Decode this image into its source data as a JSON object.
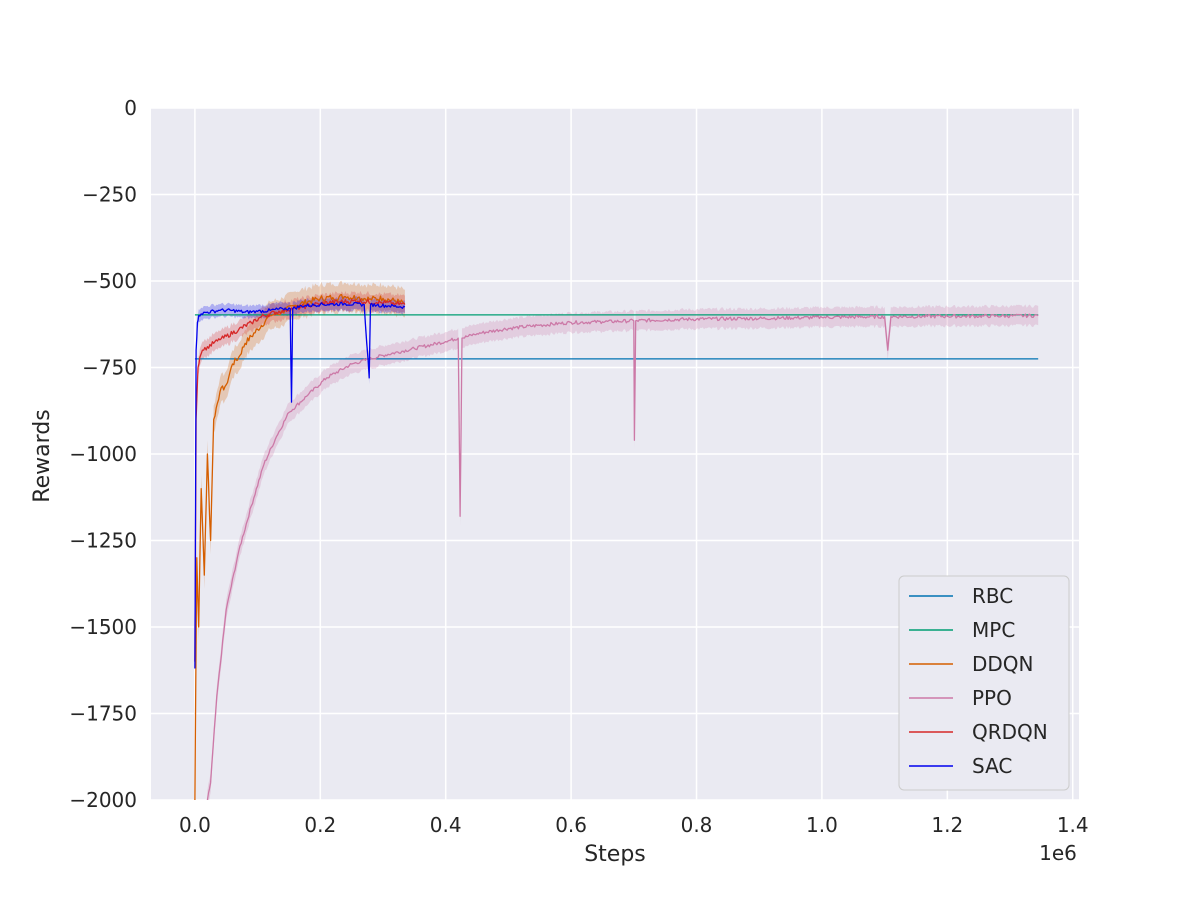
{
  "chart_data": {
    "type": "line",
    "xlabel": "Steps",
    "ylabel": "Rewards",
    "x_offset_label": "1e6",
    "xlim": [
      -0.07,
      1.41
    ],
    "ylim": [
      -2000,
      0
    ],
    "x_ticks": [
      0.0,
      0.2,
      0.4,
      0.6,
      0.8,
      1.0,
      1.2,
      1.4
    ],
    "x_tick_labels": [
      "0.0",
      "0.2",
      "0.4",
      "0.6",
      "0.8",
      "1.0",
      "1.2",
      "1.4"
    ],
    "y_ticks": [
      0,
      -250,
      -500,
      -750,
      -1000,
      -1250,
      -1500,
      -1750,
      -2000
    ],
    "y_tick_labels": [
      "0",
      "−250",
      "−500",
      "−750",
      "−1000",
      "−1250",
      "−1500",
      "−1750",
      "−2000"
    ],
    "grid": true,
    "background": "#eaeaf2",
    "legend_position": "lower-right",
    "series": [
      {
        "name": "RBC",
        "color": "#0072b2",
        "x": [
          0.0,
          1.345
        ],
        "y": [
          -725,
          -725
        ]
      },
      {
        "name": "MPC",
        "color": "#009e73",
        "x": [
          0.0,
          1.345
        ],
        "y": [
          -598,
          -598
        ]
      },
      {
        "name": "DDQN",
        "color": "#d55e00",
        "x": [
          0.0,
          0.003,
          0.006,
          0.01,
          0.015,
          0.02,
          0.025,
          0.03,
          0.04,
          0.05,
          0.06,
          0.07,
          0.08,
          0.09,
          0.1,
          0.12,
          0.14,
          0.16,
          0.18,
          0.2,
          0.22,
          0.24,
          0.26,
          0.28,
          0.3,
          0.32,
          0.335
        ],
        "y": [
          -2000,
          -1300,
          -1500,
          -1100,
          -1350,
          -1000,
          -1250,
          -900,
          -820,
          -800,
          -740,
          -720,
          -680,
          -660,
          -640,
          -600,
          -590,
          -570,
          -560,
          -550,
          -548,
          -545,
          -548,
          -552,
          -550,
          -558,
          -565
        ]
      },
      {
        "name": "PPO",
        "color": "#cc79a7",
        "x": [
          0.02,
          0.025,
          0.035,
          0.05,
          0.07,
          0.09,
          0.11,
          0.13,
          0.15,
          0.18,
          0.21,
          0.25,
          0.3,
          0.35,
          0.4,
          0.42,
          0.423,
          0.426,
          0.45,
          0.5,
          0.55,
          0.6,
          0.65,
          0.7,
          0.701,
          0.703,
          0.75,
          0.8,
          0.9,
          1.0,
          1.1,
          1.105,
          1.11,
          1.2,
          1.3,
          1.345
        ],
        "y": [
          -2000,
          -1950,
          -1700,
          -1450,
          -1280,
          -1150,
          -1030,
          -950,
          -880,
          -830,
          -780,
          -740,
          -715,
          -695,
          -675,
          -665,
          -1180,
          -665,
          -652,
          -637,
          -628,
          -620,
          -618,
          -615,
          -960,
          -615,
          -612,
          -610,
          -608,
          -605,
          -603,
          -700,
          -603,
          -602,
          -601,
          -600
        ]
      },
      {
        "name": "QRDQN",
        "color": "#d62728",
        "x": [
          0.0,
          0.002,
          0.005,
          0.008,
          0.012,
          0.02,
          0.03,
          0.04,
          0.05,
          0.07,
          0.09,
          0.11,
          0.14,
          0.17,
          0.2,
          0.23,
          0.26,
          0.29,
          0.32,
          0.335
        ],
        "y": [
          -1600,
          -900,
          -750,
          -720,
          -700,
          -690,
          -680,
          -670,
          -660,
          -640,
          -620,
          -600,
          -585,
          -575,
          -565,
          -560,
          -558,
          -562,
          -565,
          -568
        ]
      },
      {
        "name": "SAC",
        "color": "#0000ee",
        "x": [
          0.0,
          0.002,
          0.004,
          0.006,
          0.01,
          0.02,
          0.04,
          0.06,
          0.08,
          0.1,
          0.12,
          0.14,
          0.152,
          0.154,
          0.156,
          0.17,
          0.2,
          0.24,
          0.27,
          0.278,
          0.28,
          0.29,
          0.31,
          0.335
        ],
        "y": [
          -1620,
          -700,
          -620,
          -600,
          -595,
          -590,
          -585,
          -585,
          -590,
          -588,
          -585,
          -580,
          -580,
          -850,
          -580,
          -572,
          -568,
          -566,
          -568,
          -780,
          -568,
          -570,
          -572,
          -575
        ]
      }
    ]
  }
}
